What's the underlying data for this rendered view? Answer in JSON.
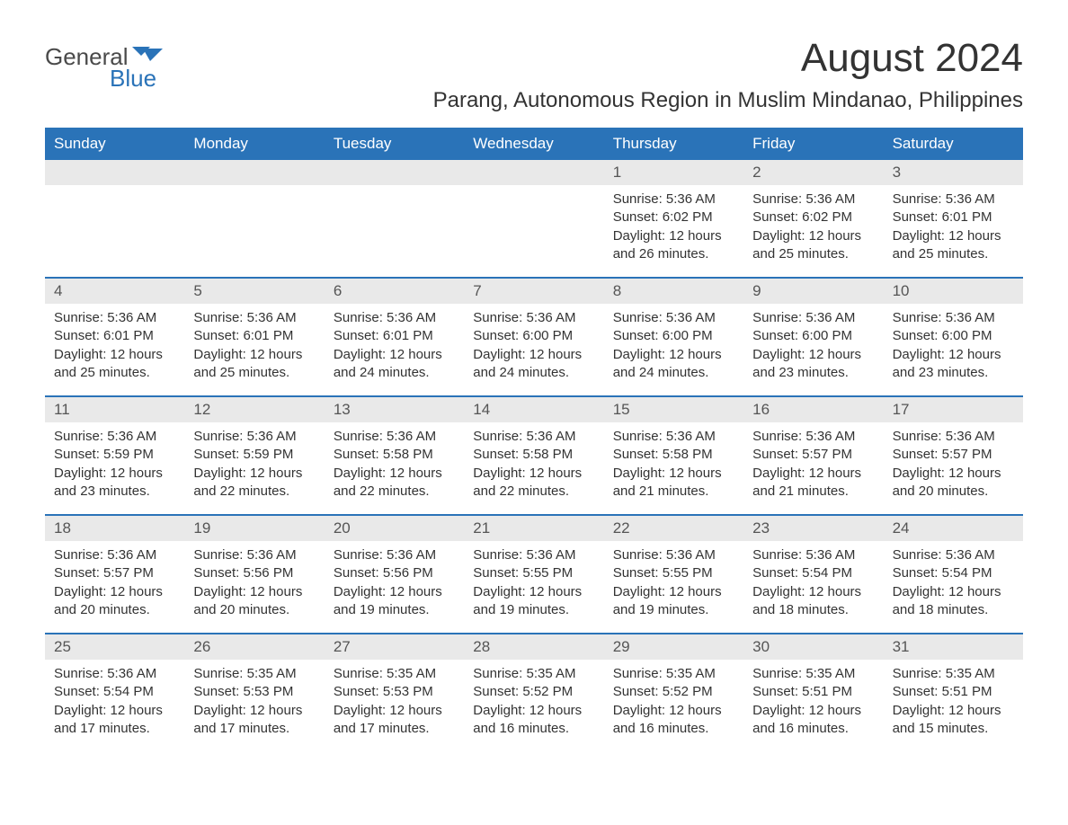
{
  "logo": {
    "text_top": "General",
    "text_bottom": "Blue",
    "top_color": "#4a4a4a",
    "bottom_color": "#2a73b8",
    "icon_color": "#2a73b8"
  },
  "title": "August 2024",
  "location": "Parang, Autonomous Region in Muslim Mindanao, Philippines",
  "colors": {
    "header_bg": "#2a73b8",
    "header_text": "#ffffff",
    "daynum_bg": "#e9e9e9",
    "week_border": "#2a73b8",
    "body_text": "#333333"
  },
  "day_headers": [
    "Sunday",
    "Monday",
    "Tuesday",
    "Wednesday",
    "Thursday",
    "Friday",
    "Saturday"
  ],
  "weeks": [
    [
      {
        "day": "",
        "sunrise": "",
        "sunset": "",
        "daylight": ""
      },
      {
        "day": "",
        "sunrise": "",
        "sunset": "",
        "daylight": ""
      },
      {
        "day": "",
        "sunrise": "",
        "sunset": "",
        "daylight": ""
      },
      {
        "day": "",
        "sunrise": "",
        "sunset": "",
        "daylight": ""
      },
      {
        "day": "1",
        "sunrise": "Sunrise: 5:36 AM",
        "sunset": "Sunset: 6:02 PM",
        "daylight": "Daylight: 12 hours and 26 minutes."
      },
      {
        "day": "2",
        "sunrise": "Sunrise: 5:36 AM",
        "sunset": "Sunset: 6:02 PM",
        "daylight": "Daylight: 12 hours and 25 minutes."
      },
      {
        "day": "3",
        "sunrise": "Sunrise: 5:36 AM",
        "sunset": "Sunset: 6:01 PM",
        "daylight": "Daylight: 12 hours and 25 minutes."
      }
    ],
    [
      {
        "day": "4",
        "sunrise": "Sunrise: 5:36 AM",
        "sunset": "Sunset: 6:01 PM",
        "daylight": "Daylight: 12 hours and 25 minutes."
      },
      {
        "day": "5",
        "sunrise": "Sunrise: 5:36 AM",
        "sunset": "Sunset: 6:01 PM",
        "daylight": "Daylight: 12 hours and 25 minutes."
      },
      {
        "day": "6",
        "sunrise": "Sunrise: 5:36 AM",
        "sunset": "Sunset: 6:01 PM",
        "daylight": "Daylight: 12 hours and 24 minutes."
      },
      {
        "day": "7",
        "sunrise": "Sunrise: 5:36 AM",
        "sunset": "Sunset: 6:00 PM",
        "daylight": "Daylight: 12 hours and 24 minutes."
      },
      {
        "day": "8",
        "sunrise": "Sunrise: 5:36 AM",
        "sunset": "Sunset: 6:00 PM",
        "daylight": "Daylight: 12 hours and 24 minutes."
      },
      {
        "day": "9",
        "sunrise": "Sunrise: 5:36 AM",
        "sunset": "Sunset: 6:00 PM",
        "daylight": "Daylight: 12 hours and 23 minutes."
      },
      {
        "day": "10",
        "sunrise": "Sunrise: 5:36 AM",
        "sunset": "Sunset: 6:00 PM",
        "daylight": "Daylight: 12 hours and 23 minutes."
      }
    ],
    [
      {
        "day": "11",
        "sunrise": "Sunrise: 5:36 AM",
        "sunset": "Sunset: 5:59 PM",
        "daylight": "Daylight: 12 hours and 23 minutes."
      },
      {
        "day": "12",
        "sunrise": "Sunrise: 5:36 AM",
        "sunset": "Sunset: 5:59 PM",
        "daylight": "Daylight: 12 hours and 22 minutes."
      },
      {
        "day": "13",
        "sunrise": "Sunrise: 5:36 AM",
        "sunset": "Sunset: 5:58 PM",
        "daylight": "Daylight: 12 hours and 22 minutes."
      },
      {
        "day": "14",
        "sunrise": "Sunrise: 5:36 AM",
        "sunset": "Sunset: 5:58 PM",
        "daylight": "Daylight: 12 hours and 22 minutes."
      },
      {
        "day": "15",
        "sunrise": "Sunrise: 5:36 AM",
        "sunset": "Sunset: 5:58 PM",
        "daylight": "Daylight: 12 hours and 21 minutes."
      },
      {
        "day": "16",
        "sunrise": "Sunrise: 5:36 AM",
        "sunset": "Sunset: 5:57 PM",
        "daylight": "Daylight: 12 hours and 21 minutes."
      },
      {
        "day": "17",
        "sunrise": "Sunrise: 5:36 AM",
        "sunset": "Sunset: 5:57 PM",
        "daylight": "Daylight: 12 hours and 20 minutes."
      }
    ],
    [
      {
        "day": "18",
        "sunrise": "Sunrise: 5:36 AM",
        "sunset": "Sunset: 5:57 PM",
        "daylight": "Daylight: 12 hours and 20 minutes."
      },
      {
        "day": "19",
        "sunrise": "Sunrise: 5:36 AM",
        "sunset": "Sunset: 5:56 PM",
        "daylight": "Daylight: 12 hours and 20 minutes."
      },
      {
        "day": "20",
        "sunrise": "Sunrise: 5:36 AM",
        "sunset": "Sunset: 5:56 PM",
        "daylight": "Daylight: 12 hours and 19 minutes."
      },
      {
        "day": "21",
        "sunrise": "Sunrise: 5:36 AM",
        "sunset": "Sunset: 5:55 PM",
        "daylight": "Daylight: 12 hours and 19 minutes."
      },
      {
        "day": "22",
        "sunrise": "Sunrise: 5:36 AM",
        "sunset": "Sunset: 5:55 PM",
        "daylight": "Daylight: 12 hours and 19 minutes."
      },
      {
        "day": "23",
        "sunrise": "Sunrise: 5:36 AM",
        "sunset": "Sunset: 5:54 PM",
        "daylight": "Daylight: 12 hours and 18 minutes."
      },
      {
        "day": "24",
        "sunrise": "Sunrise: 5:36 AM",
        "sunset": "Sunset: 5:54 PM",
        "daylight": "Daylight: 12 hours and 18 minutes."
      }
    ],
    [
      {
        "day": "25",
        "sunrise": "Sunrise: 5:36 AM",
        "sunset": "Sunset: 5:54 PM",
        "daylight": "Daylight: 12 hours and 17 minutes."
      },
      {
        "day": "26",
        "sunrise": "Sunrise: 5:35 AM",
        "sunset": "Sunset: 5:53 PM",
        "daylight": "Daylight: 12 hours and 17 minutes."
      },
      {
        "day": "27",
        "sunrise": "Sunrise: 5:35 AM",
        "sunset": "Sunset: 5:53 PM",
        "daylight": "Daylight: 12 hours and 17 minutes."
      },
      {
        "day": "28",
        "sunrise": "Sunrise: 5:35 AM",
        "sunset": "Sunset: 5:52 PM",
        "daylight": "Daylight: 12 hours and 16 minutes."
      },
      {
        "day": "29",
        "sunrise": "Sunrise: 5:35 AM",
        "sunset": "Sunset: 5:52 PM",
        "daylight": "Daylight: 12 hours and 16 minutes."
      },
      {
        "day": "30",
        "sunrise": "Sunrise: 5:35 AM",
        "sunset": "Sunset: 5:51 PM",
        "daylight": "Daylight: 12 hours and 16 minutes."
      },
      {
        "day": "31",
        "sunrise": "Sunrise: 5:35 AM",
        "sunset": "Sunset: 5:51 PM",
        "daylight": "Daylight: 12 hours and 15 minutes."
      }
    ]
  ]
}
